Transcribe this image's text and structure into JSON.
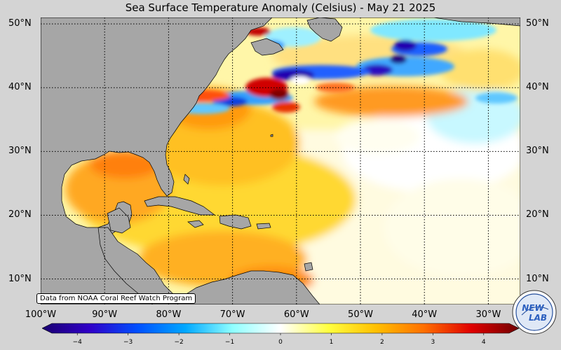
{
  "title": "Sea Surface Temperature Anomaly (Celsius) - May 21 2025",
  "map": {
    "region": "North Atlantic, Gulf of Mexico, Caribbean",
    "lon_range": [
      -100,
      -25
    ],
    "lat_range": [
      6,
      51
    ],
    "projection": "equirectangular",
    "land_color": "#a6a6a6",
    "coast_color": "#000000",
    "gridlines": "dotted",
    "lat_ticks": [
      {
        "value": 50,
        "label": "50°N"
      },
      {
        "value": 40,
        "label": "40°N"
      },
      {
        "value": 30,
        "label": "30°N"
      },
      {
        "value": 20,
        "label": "20°N"
      },
      {
        "value": 10,
        "label": "10°N"
      }
    ],
    "lon_ticks": [
      {
        "value": -100,
        "label": "100°W"
      },
      {
        "value": -90,
        "label": "90°W"
      },
      {
        "value": -80,
        "label": "80°W"
      },
      {
        "value": -70,
        "label": "70°W"
      },
      {
        "value": -60,
        "label": "60°W"
      },
      {
        "value": -50,
        "label": "50°W"
      },
      {
        "value": -40,
        "label": "40°W"
      },
      {
        "value": -30,
        "label": "30°W"
      }
    ]
  },
  "credit": "Data from NOAA Coral Reef Watch Program",
  "colorbar": {
    "min": -4.5,
    "max": 4.5,
    "ticks": [
      {
        "value": -4,
        "label": "−4"
      },
      {
        "value": -3,
        "label": "−3"
      },
      {
        "value": -2,
        "label": "−2"
      },
      {
        "value": -1,
        "label": "−1"
      },
      {
        "value": 0,
        "label": "0"
      },
      {
        "value": 1,
        "label": "1"
      },
      {
        "value": 2,
        "label": "2"
      },
      {
        "value": 3,
        "label": "3"
      },
      {
        "value": 4,
        "label": "4"
      }
    ],
    "colors": [
      "#1a0070",
      "#3000c8",
      "#0050ff",
      "#00a8ff",
      "#90ffff",
      "#ffffff",
      "#ffff40",
      "#ffc000",
      "#ff7000",
      "#e00000",
      "#700000"
    ]
  },
  "logo": {
    "text_top": "NEW",
    "text_bottom": "LAB"
  }
}
